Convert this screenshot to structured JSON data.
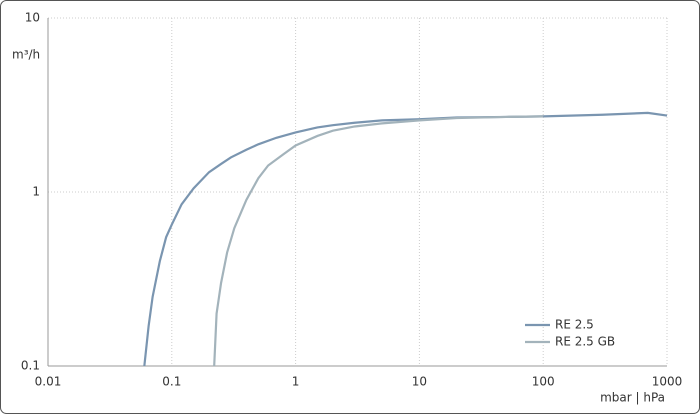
{
  "chart_data": {
    "type": "line",
    "y_label": "m³/h",
    "x_label": "mbar | hPa",
    "xlog": true,
    "ylog": true,
    "grid": true,
    "legend": "lower right",
    "xlim": [
      0.01,
      1000
    ],
    "xticks": [
      0.01,
      0.1,
      1,
      10,
      100,
      1000
    ],
    "ylim": [
      0.1,
      10
    ],
    "yticks": [
      0.1,
      1,
      10
    ],
    "series": [
      {
        "name": "RE 2.5",
        "color": "#7a95b0",
        "x": [
          0.06,
          0.065,
          0.07,
          0.08,
          0.09,
          0.1,
          0.12,
          0.15,
          0.2,
          0.25,
          0.3,
          0.4,
          0.5,
          0.7,
          1,
          1.5,
          2,
          3,
          5,
          10,
          20,
          50,
          100,
          300,
          700,
          1000
        ],
        "values": [
          0.1,
          0.17,
          0.25,
          0.4,
          0.55,
          0.65,
          0.85,
          1.05,
          1.3,
          1.45,
          1.58,
          1.75,
          1.88,
          2.05,
          2.2,
          2.35,
          2.42,
          2.5,
          2.58,
          2.62,
          2.68,
          2.7,
          2.72,
          2.78,
          2.85,
          2.75
        ]
      },
      {
        "name": "RE 2.5 GB",
        "color": "#a3b3bb",
        "x": [
          0.22,
          0.23,
          0.25,
          0.28,
          0.32,
          0.4,
          0.5,
          0.6,
          0.8,
          1,
          1.5,
          2,
          3,
          5,
          10,
          20,
          50,
          100
        ],
        "values": [
          0.1,
          0.2,
          0.3,
          0.45,
          0.62,
          0.9,
          1.2,
          1.42,
          1.65,
          1.85,
          2.1,
          2.25,
          2.38,
          2.48,
          2.58,
          2.66,
          2.7,
          2.72
        ]
      }
    ]
  }
}
